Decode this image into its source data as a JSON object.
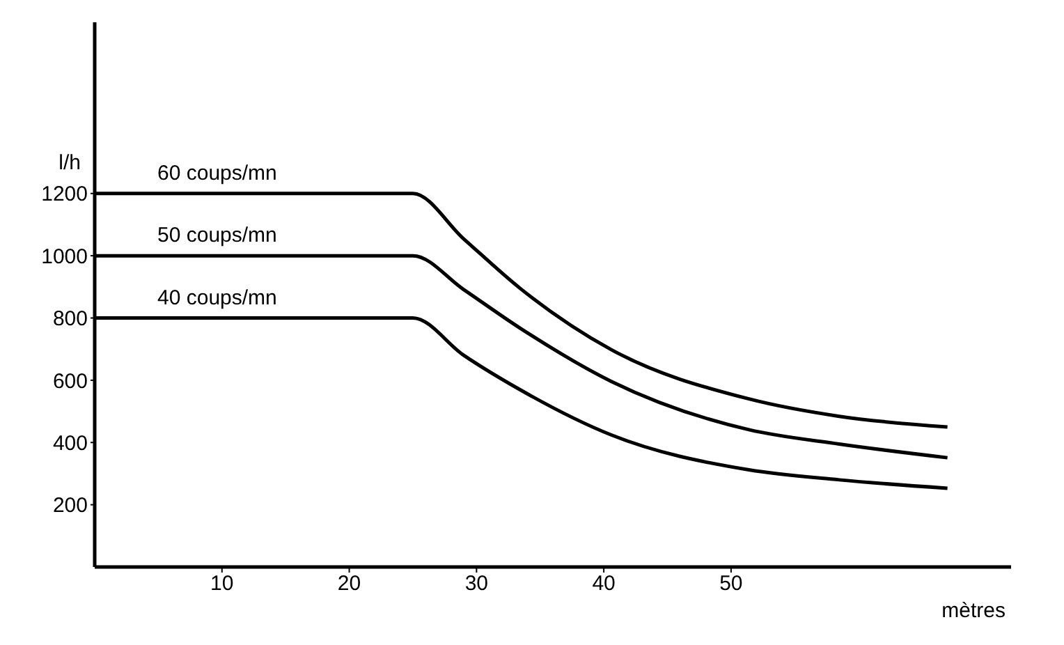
{
  "chart_data": {
    "type": "line",
    "ylabel": "l/h",
    "xlabel": "mètres",
    "xlim": [
      0,
      72
    ],
    "xticks": [
      10,
      20,
      30,
      40,
      50
    ],
    "ylim": [
      0,
      1750
    ],
    "yticks": [
      200,
      400,
      600,
      800,
      1000,
      1200
    ],
    "grid": false,
    "legend": false,
    "marker": "none",
    "line_style": "solid",
    "series": [
      {
        "name": "60 coups/mn",
        "color": "#000000",
        "x": [
          0,
          25,
          29,
          33.4,
          40.6,
          51.4,
          58.5,
          67
        ],
        "values": [
          1200,
          1200,
          1054,
          896,
          698,
          540,
          484,
          450
        ]
      },
      {
        "name": "50 coups/mn",
        "color": "#000000",
        "x": [
          0,
          25,
          29,
          33.4,
          40.6,
          51.4,
          58.5,
          67
        ],
        "values": [
          1000,
          1000,
          891,
          768,
          596,
          441,
          395,
          351
        ]
      },
      {
        "name": "40 coups/mn",
        "color": "#000000",
        "x": [
          0,
          25,
          29,
          33.4,
          40.6,
          51.4,
          58.5,
          67
        ],
        "values": [
          800,
          800,
          680,
          570,
          424,
          312,
          280,
          253
        ]
      }
    ]
  }
}
